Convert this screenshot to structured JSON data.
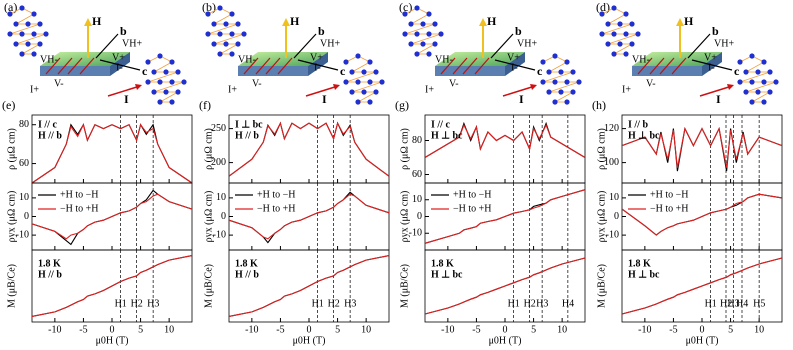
{
  "schematics": [
    {
      "label": "(a)",
      "texts": [
        "b",
        "c",
        "H",
        "I",
        "VH+",
        "VH-",
        "V+",
        "V-",
        "I+",
        "I-"
      ]
    },
    {
      "label": "(b)",
      "texts": [
        "b",
        "c",
        "H",
        "I",
        "VH+",
        "VH-",
        "V+",
        "V-",
        "I+",
        "I-"
      ]
    },
    {
      "label": "(c)",
      "texts": [
        "b",
        "c",
        "H",
        "I",
        "VH+",
        "VH-",
        "V+",
        "V-",
        "I+",
        "I-"
      ]
    },
    {
      "label": "(d)",
      "texts": [
        "b",
        "c",
        "H",
        "I",
        "VH+",
        "VH-",
        "V+",
        "V-",
        "I+",
        "I-"
      ]
    }
  ],
  "chart_data": [
    {
      "type": "line",
      "label": "(e)",
      "xlabel": "μ0H (T)",
      "xlim": [
        -14,
        14
      ],
      "xticks": [
        -10,
        -5,
        0,
        5,
        10
      ],
      "x": [
        -14,
        -10,
        -8,
        -7.2,
        -6,
        -5,
        -4.3,
        -3,
        -1.5,
        0,
        1.5,
        3,
        4.3,
        5,
        6,
        7.2,
        8,
        10,
        14
      ],
      "field_lines": [
        {
          "value": 1.5,
          "label": "H1"
        },
        {
          "value": 4.3,
          "label": "H2"
        },
        {
          "value": 7.2,
          "label": "H3"
        }
      ],
      "rows": [
        {
          "ylabel": "ρ (μΩ cm)",
          "ylim": [
            50,
            85
          ],
          "yticks": [
            60,
            80
          ],
          "annotations": [
            "I // c",
            "H // b"
          ],
          "series": [
            {
              "color": "#000000",
              "values": [
                50,
                58,
                70,
                80,
                75,
                80,
                72,
                80,
                78,
                80,
                78,
                80,
                72,
                80,
                75,
                80,
                70,
                58,
                50
              ]
            },
            {
              "color": "#e02020",
              "values": [
                50,
                58,
                70,
                79,
                74,
                80,
                72,
                80,
                78,
                80,
                78,
                80,
                72,
                80,
                76,
                78,
                70,
                58,
                50
              ]
            }
          ]
        },
        {
          "ylabel": "ρyx (μΩ cm)",
          "ylim": [
            -18,
            18
          ],
          "yticks": [
            -10,
            0,
            10
          ],
          "annotations": [],
          "series": [
            {
              "name": "+H to −H",
              "color": "#000000",
              "values": [
                -4,
                -8,
                -13,
                -15,
                -9,
                -7,
                -5,
                -3,
                -2,
                0,
                2,
                3,
                5,
                7,
                9,
                14,
                12,
                8,
                4
              ]
            },
            {
              "name": "−H to +H",
              "color": "#e02020",
              "values": [
                -4,
                -8,
                -12,
                -10,
                -9,
                -7,
                -5,
                -3,
                -2,
                0,
                2,
                3,
                5,
                7,
                8,
                11,
                12,
                8,
                4
              ]
            }
          ]
        },
        {
          "ylabel": "M (μB/Ce)",
          "ylim": [
            -1.6,
            1.6
          ],
          "yticks": [],
          "annotations": [
            "1.8 K",
            "H // b"
          ],
          "series": [
            {
              "color": "#000000",
              "values": [
                -1.35,
                -1.15,
                -0.95,
                -0.85,
                -0.7,
                -0.6,
                -0.45,
                -0.35,
                -0.2,
                0,
                0.2,
                0.35,
                0.45,
                0.6,
                0.7,
                0.85,
                0.95,
                1.15,
                1.35
              ]
            },
            {
              "color": "#e02020",
              "values": [
                -1.35,
                -1.15,
                -0.95,
                -0.85,
                -0.7,
                -0.6,
                -0.45,
                -0.35,
                -0.2,
                0,
                0.2,
                0.35,
                0.45,
                0.6,
                0.7,
                0.85,
                0.95,
                1.15,
                1.35
              ]
            }
          ]
        }
      ]
    },
    {
      "type": "line",
      "label": "(f)",
      "xlabel": "μ0H (T)",
      "xlim": [
        -14,
        14
      ],
      "xticks": [
        -10,
        -5,
        0,
        5,
        10
      ],
      "x": [
        -14,
        -10,
        -8,
        -7.2,
        -6,
        -5,
        -4.3,
        -3,
        -1.5,
        0,
        1.5,
        3,
        4.3,
        5,
        6,
        7.2,
        8,
        10,
        14
      ],
      "field_lines": [
        {
          "value": 1.5,
          "label": "H1"
        },
        {
          "value": 4.3,
          "label": "H2"
        },
        {
          "value": 7.2,
          "label": "H3"
        }
      ],
      "rows": [
        {
          "ylabel": "ρ (μΩ cm)",
          "ylim": [
            170,
            270
          ],
          "yticks": [
            200,
            250
          ],
          "annotations": [
            "I ⊥ bc",
            "H // b"
          ],
          "series": [
            {
              "color": "#000000",
              "values": [
                180,
                205,
                230,
                255,
                240,
                258,
                235,
                258,
                250,
                258,
                250,
                258,
                235,
                258,
                240,
                255,
                230,
                205,
                180
              ]
            },
            {
              "color": "#e02020",
              "values": [
                180,
                205,
                230,
                254,
                242,
                258,
                235,
                258,
                250,
                258,
                250,
                258,
                235,
                258,
                242,
                253,
                230,
                205,
                180
              ]
            }
          ]
        },
        {
          "ylabel": "ρyx (μΩ cm)",
          "ylim": [
            -18,
            18
          ],
          "yticks": [
            -10,
            0,
            10
          ],
          "annotations": [],
          "series": [
            {
              "name": "+H to −H",
              "color": "#000000",
              "values": [
                -2,
                -6,
                -11,
                -14,
                -9,
                -7,
                -5,
                -3,
                -2,
                0,
                2,
                3,
                5,
                7,
                9,
                13,
                11,
                6,
                2
              ]
            },
            {
              "name": "−H to +H",
              "color": "#e02020",
              "values": [
                -2,
                -6,
                -11,
                -12,
                -9,
                -7,
                -5,
                -3,
                -2,
                0,
                2,
                3,
                5,
                7,
                9,
                12,
                11,
                6,
                2
              ]
            }
          ]
        },
        {
          "ylabel": "M (μB/Ce)",
          "ylim": [
            -1.6,
            1.6
          ],
          "yticks": [],
          "annotations": [
            "1.8 K",
            "H // b"
          ],
          "series": [
            {
              "color": "#000000",
              "values": [
                -1.35,
                -1.15,
                -0.95,
                -0.85,
                -0.7,
                -0.6,
                -0.45,
                -0.35,
                -0.2,
                0,
                0.2,
                0.35,
                0.45,
                0.6,
                0.7,
                0.85,
                0.95,
                1.15,
                1.35
              ]
            },
            {
              "color": "#e02020",
              "values": [
                -1.35,
                -1.15,
                -0.95,
                -0.85,
                -0.7,
                -0.6,
                -0.45,
                -0.35,
                -0.2,
                0,
                0.2,
                0.35,
                0.45,
                0.6,
                0.7,
                0.85,
                0.95,
                1.15,
                1.35
              ]
            }
          ]
        }
      ]
    },
    {
      "type": "line",
      "label": "(g)",
      "xlabel": "μ0H (T)",
      "xlim": [
        -14,
        14
      ],
      "xticks": [
        -10,
        -5,
        0,
        5,
        10
      ],
      "x": [
        -14,
        -10,
        -8,
        -7.2,
        -6,
        -5,
        -4.3,
        -3,
        -1.5,
        0,
        1.5,
        3,
        4.3,
        5,
        6,
        7.2,
        8,
        10,
        14
      ],
      "field_lines": [
        {
          "value": 1.5,
          "label": "H1"
        },
        {
          "value": 4.3,
          "label": "H2"
        },
        {
          "value": 6.5,
          "label": "H3"
        },
        {
          "value": 11,
          "label": "H4"
        }
      ],
      "rows": [
        {
          "ylabel": "ρ (μΩ cm)",
          "ylim": [
            55,
            95
          ],
          "yticks": [
            60,
            80
          ],
          "annotations": [
            "I // c",
            "H ⊥ bc"
          ],
          "series": [
            {
              "color": "#000000",
              "values": [
                70,
                78,
                82,
                90,
                80,
                88,
                75,
                85,
                80,
                83,
                80,
                85,
                75,
                88,
                80,
                90,
                82,
                78,
                70
              ]
            },
            {
              "color": "#e02020",
              "values": [
                70,
                78,
                82,
                89,
                81,
                88,
                75,
                85,
                80,
                83,
                80,
                85,
                75,
                87,
                81,
                89,
                82,
                78,
                70
              ]
            }
          ]
        },
        {
          "ylabel": "ρyx (μΩ cm)",
          "ylim": [
            -20,
            20
          ],
          "yticks": [
            -10,
            0,
            10
          ],
          "annotations": [],
          "series": [
            {
              "name": "+H to −H",
              "color": "#000000",
              "values": [
                -16,
                -12,
                -10,
                -8,
                -7,
                -6,
                -4,
                -3,
                -2,
                0,
                2,
                3,
                4,
                6,
                7,
                8,
                10,
                12,
                16
              ]
            },
            {
              "name": "−H to +H",
              "color": "#e02020",
              "values": [
                -16,
                -12,
                -10,
                -8,
                -7,
                -6,
                -4,
                -3,
                -2,
                0,
                2,
                3,
                4,
                5,
                6,
                8,
                10,
                12,
                16
              ]
            }
          ]
        },
        {
          "ylabel": "M (μB/Ce)",
          "ylim": [
            -0.9,
            0.9
          ],
          "yticks": [],
          "annotations": [
            "1.8 K",
            "H ⊥ bc"
          ],
          "series": [
            {
              "color": "#000000",
              "values": [
                -0.7,
                -0.55,
                -0.45,
                -0.4,
                -0.33,
                -0.28,
                -0.22,
                -0.16,
                -0.08,
                0,
                0.08,
                0.16,
                0.22,
                0.28,
                0.33,
                0.4,
                0.45,
                0.55,
                0.7
              ]
            },
            {
              "color": "#e02020",
              "values": [
                -0.7,
                -0.55,
                -0.45,
                -0.4,
                -0.33,
                -0.28,
                -0.22,
                -0.16,
                -0.08,
                0,
                0.08,
                0.16,
                0.22,
                0.28,
                0.33,
                0.4,
                0.45,
                0.55,
                0.7
              ]
            }
          ]
        }
      ]
    },
    {
      "type": "line",
      "label": "(h)",
      "xlabel": "μ0H (T)",
      "xlim": [
        -14,
        14
      ],
      "xticks": [
        -10,
        -5,
        0,
        5,
        10
      ],
      "x": [
        -14,
        -10,
        -8,
        -7.2,
        -6,
        -5,
        -4.3,
        -3,
        -1.5,
        0,
        1.5,
        3,
        4.3,
        5,
        6,
        7.2,
        8,
        10,
        14
      ],
      "field_lines": [
        {
          "value": 1.5,
          "label": "H1"
        },
        {
          "value": 4.2,
          "label": "H2"
        },
        {
          "value": 5.5,
          "label": "H3"
        },
        {
          "value": 7,
          "label": "H4"
        },
        {
          "value": 10,
          "label": "H5"
        }
      ],
      "rows": [
        {
          "ylabel": "ρ (μΩ cm)",
          "ylim": [
            88,
            128
          ],
          "yticks": [
            100,
            120
          ],
          "annotations": [
            "I // b",
            "H ⊥ bc"
          ],
          "series": [
            {
              "color": "#000000",
              "values": [
                110,
                115,
                105,
                118,
                100,
                120,
                95,
                120,
                110,
                120,
                110,
                120,
                95,
                120,
                100,
                118,
                105,
                115,
                110
              ]
            },
            {
              "color": "#e02020",
              "values": [
                110,
                115,
                105,
                117,
                102,
                119,
                97,
                120,
                110,
                120,
                110,
                120,
                97,
                119,
                102,
                117,
                105,
                115,
                110
              ]
            }
          ]
        },
        {
          "ylabel": "ρyx (μΩ cm)",
          "ylim": [
            -18,
            18
          ],
          "yticks": [
            -10,
            0,
            10
          ],
          "annotations": [],
          "series": [
            {
              "name": "+H to −H",
              "color": "#000000",
              "values": [
                4,
                -5,
                -10,
                -8,
                -6,
                -5,
                -4,
                -3,
                -2,
                0,
                2,
                3,
                4,
                5,
                6,
                8,
                10,
                12,
                10
              ]
            },
            {
              "name": "−H to +H",
              "color": "#e02020",
              "values": [
                4,
                -5,
                -10,
                -8,
                -6,
                -5,
                -4,
                -3,
                -2,
                0,
                2,
                3,
                4,
                5,
                7,
                8,
                10,
                12,
                10
              ]
            }
          ]
        },
        {
          "ylabel": "M (μB/Ce)",
          "ylim": [
            -0.9,
            0.9
          ],
          "yticks": [],
          "annotations": [
            "1.8 K",
            "H ⊥ bc"
          ],
          "series": [
            {
              "color": "#000000",
              "values": [
                -0.7,
                -0.55,
                -0.45,
                -0.4,
                -0.33,
                -0.28,
                -0.22,
                -0.16,
                -0.08,
                0,
                0.08,
                0.16,
                0.22,
                0.28,
                0.33,
                0.4,
                0.45,
                0.55,
                0.7
              ]
            },
            {
              "color": "#e02020",
              "values": [
                -0.7,
                -0.55,
                -0.45,
                -0.4,
                -0.33,
                -0.28,
                -0.22,
                -0.16,
                -0.08,
                0,
                0.08,
                0.16,
                0.22,
                0.28,
                0.33,
                0.4,
                0.45,
                0.55,
                0.7
              ]
            }
          ]
        }
      ]
    }
  ]
}
